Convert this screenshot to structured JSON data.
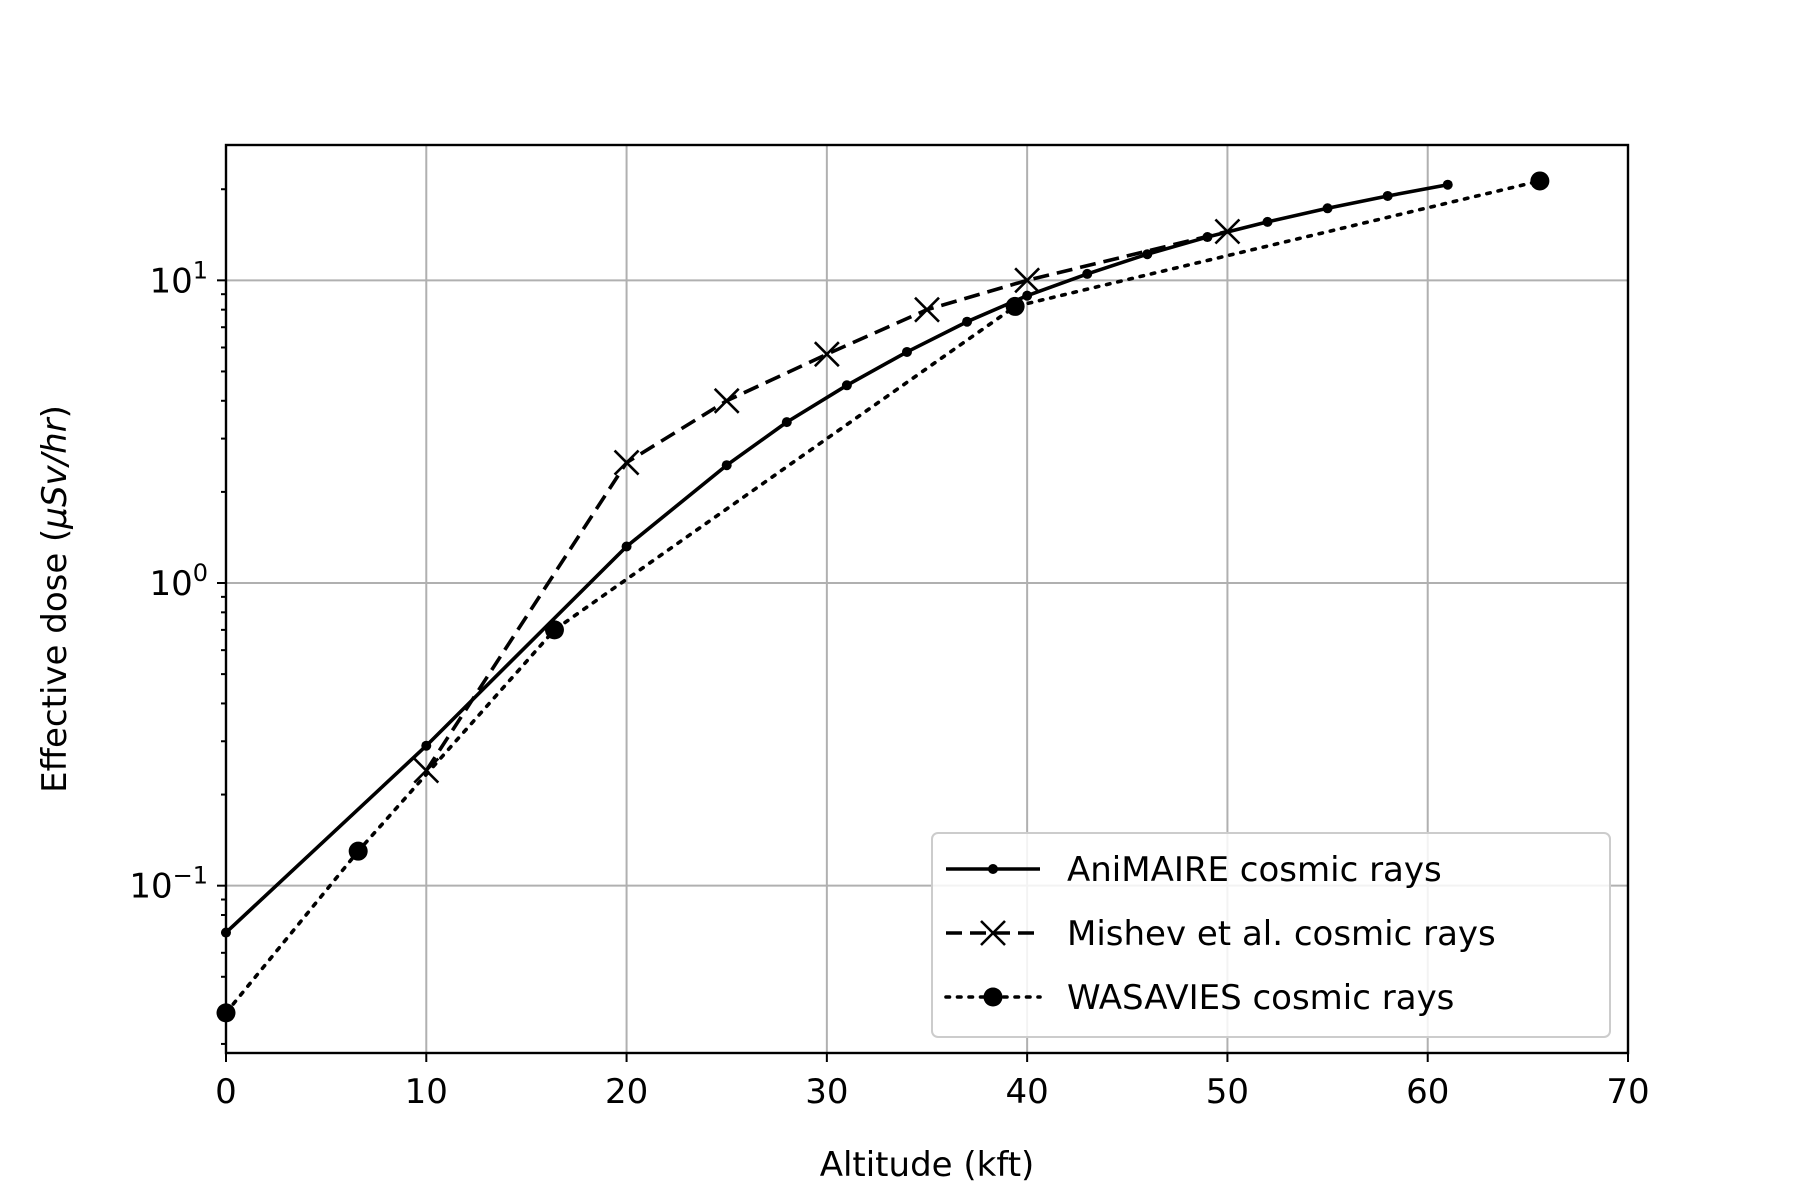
{
  "chart_data": {
    "type": "line",
    "title": "",
    "xlabel": "Altitude (kft)",
    "ylabel_parts": [
      "Effective dose (",
      "μSv/hr",
      ")"
    ],
    "x_scale": "linear",
    "y_scale": "log",
    "xlim": [
      0,
      70
    ],
    "ylim": [
      0.028,
      28
    ],
    "x_ticks": [
      0,
      10,
      20,
      30,
      40,
      50,
      60,
      70
    ],
    "y_ticks": [
      {
        "value": 0.1,
        "base": "10",
        "exp": "−1"
      },
      {
        "value": 1,
        "base": "10",
        "exp": "0"
      },
      {
        "value": 10,
        "base": "10",
        "exp": "1"
      }
    ],
    "grid": true,
    "legend_position": "lower right",
    "series": [
      {
        "name": "AniMAIRE cosmic rays",
        "line": "solid",
        "marker": "small-dot",
        "x": [
          0,
          10,
          20,
          25,
          28,
          31,
          34,
          37,
          40,
          43,
          46,
          49,
          52,
          55,
          58,
          61
        ],
        "y": [
          0.07,
          0.29,
          1.32,
          2.45,
          3.4,
          4.5,
          5.8,
          7.3,
          8.9,
          10.5,
          12.2,
          13.9,
          15.6,
          17.3,
          19.0,
          20.7
        ]
      },
      {
        "name": "Mishev et al. cosmic rays",
        "line": "dashed",
        "marker": "x",
        "x": [
          10,
          20,
          25,
          30,
          35,
          40,
          50
        ],
        "y": [
          0.24,
          2.5,
          4.0,
          5.7,
          8.0,
          10.0,
          14.5
        ]
      },
      {
        "name": "WASAVIES cosmic rays",
        "line": "dotted",
        "marker": "filled-circle",
        "x": [
          0,
          6.6,
          16.4,
          39.4,
          65.6
        ],
        "y": [
          0.038,
          0.13,
          0.7,
          8.2,
          21.3
        ]
      }
    ]
  }
}
